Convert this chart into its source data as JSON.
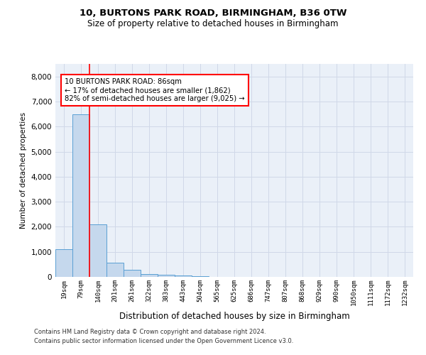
{
  "title1": "10, BURTONS PARK ROAD, BIRMINGHAM, B36 0TW",
  "title2": "Size of property relative to detached houses in Birmingham",
  "xlabel": "Distribution of detached houses by size in Birmingham",
  "ylabel": "Number of detached properties",
  "categories": [
    "19sqm",
    "79sqm",
    "140sqm",
    "201sqm",
    "261sqm",
    "322sqm",
    "383sqm",
    "443sqm",
    "504sqm",
    "565sqm",
    "625sqm",
    "686sqm",
    "747sqm",
    "807sqm",
    "868sqm",
    "929sqm",
    "990sqm",
    "1050sqm",
    "1111sqm",
    "1172sqm",
    "1232sqm"
  ],
  "bar_heights": [
    1100,
    6500,
    2100,
    580,
    270,
    120,
    80,
    50,
    30,
    0,
    0,
    0,
    0,
    0,
    0,
    0,
    0,
    0,
    0,
    0,
    0
  ],
  "bar_color": "#c5d8ed",
  "bar_edge_color": "#5a9fd4",
  "annotation_text": "10 BURTONS PARK ROAD: 86sqm\n← 17% of detached houses are smaller (1,862)\n82% of semi-detached houses are larger (9,025) →",
  "annotation_box_color": "white",
  "annotation_box_edge_color": "red",
  "property_line_color": "red",
  "footer1": "Contains HM Land Registry data © Crown copyright and database right 2024.",
  "footer2": "Contains public sector information licensed under the Open Government Licence v3.0.",
  "ylim": [
    0,
    8500
  ],
  "yticks": [
    0,
    1000,
    2000,
    3000,
    4000,
    5000,
    6000,
    7000,
    8000
  ],
  "grid_color": "#d0d8e8",
  "bg_color": "#eaf0f8",
  "fig_width": 6.0,
  "fig_height": 5.0,
  "dpi": 100
}
